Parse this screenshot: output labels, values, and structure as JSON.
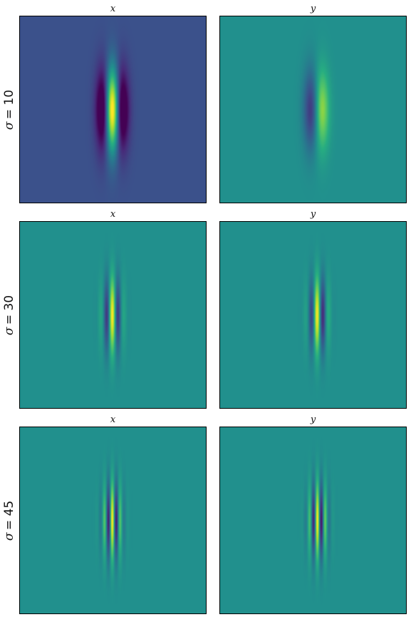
{
  "chart_data": {
    "type": "heatmap",
    "colormap": "viridis",
    "axis_ticks": false,
    "columns": [
      "x",
      "y"
    ],
    "rows": [
      {
        "label_symbol": "σ",
        "label_value": "= 10",
        "sigma": 10,
        "panels": [
          {
            "title": "x",
            "component": "x",
            "background_level": 0.25
          },
          {
            "title": "y",
            "component": "y",
            "background_level": 0.5
          }
        ]
      },
      {
        "label_symbol": "σ",
        "label_value": "= 30",
        "sigma": 30,
        "panels": [
          {
            "title": "x",
            "component": "x",
            "background_level": 0.5
          },
          {
            "title": "y",
            "component": "y",
            "background_level": 0.5
          }
        ]
      },
      {
        "label_symbol": "σ",
        "label_value": "= 45",
        "sigma": 45,
        "panels": [
          {
            "title": "x",
            "component": "x",
            "background_level": 0.5
          },
          {
            "title": "y",
            "component": "y",
            "background_level": 0.5
          }
        ]
      }
    ]
  }
}
